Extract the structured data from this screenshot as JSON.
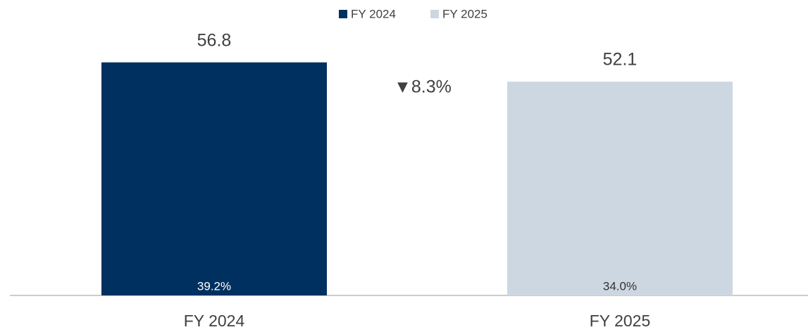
{
  "chart_data": {
    "type": "bar",
    "categories": [
      "FY 2024",
      "FY 2025"
    ],
    "series": [
      {
        "name": "FY 2024",
        "color": "#003060",
        "values": [
          56.8,
          null
        ],
        "label_color": "#ffffff"
      },
      {
        "name": "FY 2025",
        "color": "#cdd7e2",
        "values": [
          null,
          52.1
        ],
        "label_color": "#333333"
      }
    ],
    "bar_labels": {
      "values": [
        39.2,
        34.0
      ],
      "value_labels": [
        "39.2%",
        "34.0%"
      ]
    },
    "annotations": [
      "▼8.3%"
    ],
    "ylim": [
      0,
      60
    ]
  }
}
